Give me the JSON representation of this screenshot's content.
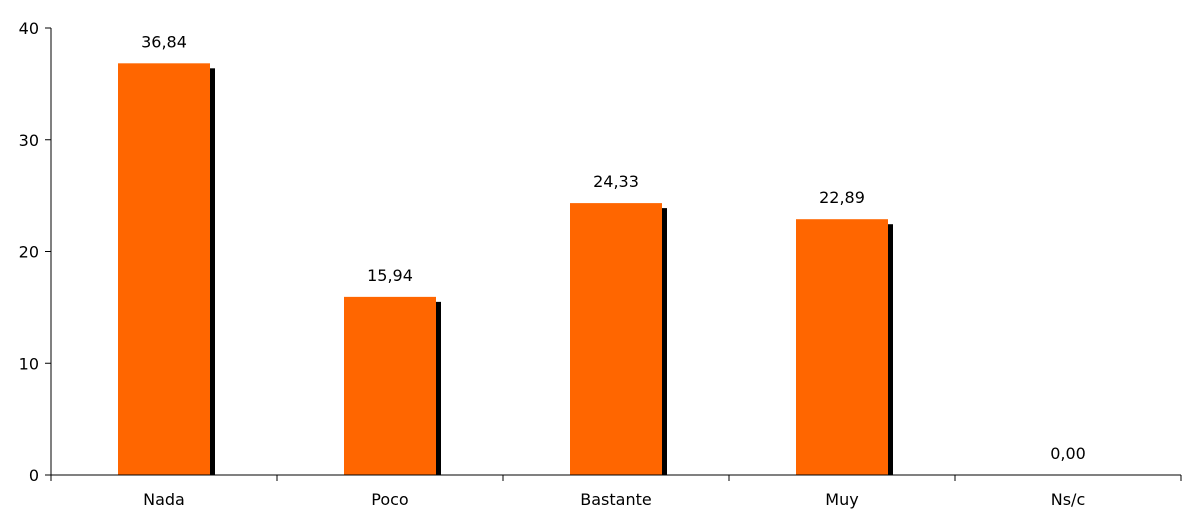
{
  "chart_data": {
    "type": "bar",
    "categories": [
      "Nada",
      "Poco",
      "Bastante",
      "Muy",
      "Ns/c"
    ],
    "values": [
      36.84,
      15.94,
      24.33,
      22.89,
      0.0
    ],
    "data_labels": [
      "36,84",
      "15,94",
      "24,33",
      "22,89",
      "0,00"
    ],
    "y_ticks": [
      0,
      10,
      20,
      30,
      40
    ],
    "ylim": [
      0,
      40
    ],
    "grid": false,
    "bar_color": "#FF6600",
    "shadow_color": "#000000"
  }
}
